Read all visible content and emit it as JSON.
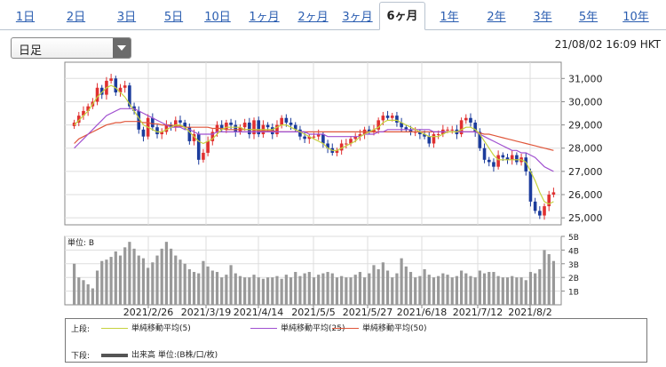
{
  "tabs": [
    "1日",
    "2日",
    "3日",
    "5日",
    "10日",
    "1ヶ月",
    "2ヶ月",
    "3ヶ月",
    "6ヶ月",
    "1年",
    "2年",
    "3年",
    "5年",
    "10年"
  ],
  "active_tab": "6ヶ月",
  "period_select": {
    "value": "日足"
  },
  "timestamp": "21/08/02 16:09 HKT",
  "legend": {
    "upper_label": "上段:",
    "lower_label": "下段:",
    "ma5": "単純移動平均(5)",
    "ma25": "単純移動平均(25)",
    "ma50": "単純移動平均(50)",
    "volume": "出来高 単位:(B株/口/枚)"
  },
  "colors": {
    "up": "#e03030",
    "down": "#1c3c9c",
    "ma5": "#c6d23e",
    "ma25": "#a050d0",
    "ma50": "#e0563a",
    "volume": "#999999"
  },
  "chart_data": {
    "type": "candlestick",
    "x_ticks": [
      "2021/2/26",
      "2021/3/19",
      "2021/4/14",
      "2021/5/5",
      "2021/5/27",
      "2021/6/18",
      "2021/7/12",
      "2021/8/2"
    ],
    "price": {
      "ylim": [
        24700,
        31700
      ],
      "y_ticks": [
        "25,000",
        "26,000",
        "27,000",
        "28,000",
        "29,000",
        "30,000",
        "31,000"
      ],
      "closes": [
        29100,
        29400,
        29600,
        29800,
        30000,
        30600,
        30300,
        30900,
        31000,
        30400,
        30600,
        30700,
        29800,
        29600,
        28800,
        28500,
        29300,
        28900,
        28600,
        28700,
        29000,
        28900,
        29200,
        29100,
        28900,
        28300,
        28600,
        27500,
        27800,
        28300,
        28700,
        29000,
        28800,
        29100,
        29000,
        28700,
        28900,
        29100,
        28600,
        29200,
        28600,
        29000,
        28900,
        28600,
        29000,
        29300,
        29100,
        29000,
        28800,
        28500,
        28400,
        28500,
        28500,
        28600,
        28200,
        28000,
        27800,
        27900,
        28200,
        28200,
        28400,
        28500,
        28600,
        28800,
        28700,
        28800,
        29200,
        29400,
        29300,
        29400,
        29100,
        28900,
        28800,
        28700,
        28700,
        28600,
        28500,
        28200,
        28600,
        28600,
        28800,
        28800,
        28800,
        28600,
        29200,
        29300,
        29100,
        28700,
        28000,
        27500,
        27400,
        27200,
        27700,
        27600,
        27500,
        27700,
        27400,
        27600,
        27000,
        25700,
        25300,
        25100,
        25500,
        26000,
        26100
      ],
      "ma5": [
        29000,
        29200,
        29400,
        29600,
        29900,
        30200,
        30400,
        30600,
        30700,
        30600,
        30400,
        30200,
        29900,
        29600,
        29300,
        29000,
        28900,
        28800,
        28700,
        28700,
        28800,
        28900,
        29000,
        29000,
        28900,
        28700,
        28500,
        28300,
        28200,
        28300,
        28400,
        28600,
        28800,
        28900,
        28900,
        28900,
        28900,
        28800,
        28800,
        28800,
        28800,
        28800,
        28800,
        28800,
        28900,
        29000,
        29000,
        28900,
        28800,
        28700,
        28600,
        28500,
        28400,
        28300,
        28200,
        28000,
        27900,
        27900,
        28000,
        28100,
        28200,
        28300,
        28500,
        28600,
        28700,
        28800,
        28900,
        29100,
        29200,
        29200,
        29200,
        29100,
        29000,
        28900,
        28800,
        28700,
        28600,
        28500,
        28500,
        28500,
        28600,
        28700,
        28700,
        28700,
        28800,
        28900,
        28900,
        28800,
        28600,
        28300,
        28000,
        27700,
        27500,
        27500,
        27500,
        27500,
        27500,
        27500,
        27400,
        27000,
        26600,
        26100,
        25700,
        25600,
        25700
      ],
      "ma25": [
        28000,
        28200,
        28400,
        28600,
        28800,
        29000,
        29200,
        29400,
        29500,
        29600,
        29700,
        29700,
        29700,
        29700,
        29600,
        29500,
        29400,
        29300,
        29200,
        29100,
        29000,
        28900,
        28900,
        28900,
        28800,
        28800,
        28700,
        28600,
        28600,
        28600,
        28600,
        28700,
        28700,
        28700,
        28700,
        28700,
        28700,
        28700,
        28700,
        28700,
        28700,
        28700,
        28700,
        28700,
        28700,
        28700,
        28700,
        28700,
        28700,
        28700,
        28700,
        28600,
        28600,
        28600,
        28600,
        28500,
        28500,
        28500,
        28500,
        28500,
        28500,
        28500,
        28500,
        28600,
        28600,
        28600,
        28700,
        28700,
        28800,
        28800,
        28800,
        28800,
        28800,
        28800,
        28800,
        28800,
        28800,
        28800,
        28700,
        28700,
        28700,
        28700,
        28700,
        28700,
        28700,
        28700,
        28700,
        28700,
        28600,
        28500,
        28400,
        28300,
        28200,
        28100,
        28000,
        27900,
        27900,
        27800,
        27800,
        27700,
        27600,
        27400,
        27200,
        27100,
        27000
      ],
      "ma50": [
        28200,
        28400,
        28500,
        28600,
        28700,
        28800,
        28900,
        29000,
        29050,
        29100,
        29100,
        29150,
        29150,
        29150,
        29150,
        29100,
        29100,
        29050,
        29050,
        29000,
        29000,
        29000,
        28950,
        28950,
        28900,
        28900,
        28900,
        28900,
        28900,
        28900,
        28850,
        28850,
        28850,
        28800,
        28800,
        28800,
        28800,
        28800,
        28800,
        28800,
        28750,
        28750,
        28750,
        28750,
        28700,
        28700,
        28700,
        28700,
        28700,
        28700,
        28700,
        28700,
        28700,
        28700,
        28700,
        28700,
        28700,
        28700,
        28700,
        28700,
        28700,
        28700,
        28700,
        28700,
        28700,
        28700,
        28700,
        28700,
        28700,
        28700,
        28700,
        28700,
        28700,
        28700,
        28700,
        28700,
        28700,
        28700,
        28700,
        28700,
        28700,
        28700,
        28700,
        28700,
        28700,
        28700,
        28700,
        28700,
        28650,
        28600,
        28600,
        28550,
        28500,
        28450,
        28400,
        28350,
        28300,
        28250,
        28200,
        28150,
        28100,
        28050,
        28000,
        27950,
        27900
      ]
    },
    "volume": {
      "unit": "B",
      "title": "単位: B",
      "ylim": [
        0,
        5
      ],
      "y_ticks": [
        "1B",
        "2B",
        "3B",
        "4B",
        "5B"
      ],
      "values": [
        3.0,
        2.0,
        1.8,
        1.5,
        1.2,
        2.5,
        3.2,
        3.3,
        3.5,
        3.9,
        3.6,
        4.2,
        4.6,
        4.1,
        3.6,
        3.4,
        2.7,
        3.1,
        3.6,
        4.1,
        4.6,
        4.1,
        3.6,
        3.3,
        3.0,
        2.6,
        2.4,
        2.3,
        3.2,
        2.8,
        2.5,
        2.4,
        2.0,
        2.2,
        2.9,
        2.3,
        2.1,
        2.0,
        2.0,
        2.2,
        2.0,
        1.9,
        2.0,
        2.0,
        2.1,
        1.9,
        2.2,
        2.0,
        2.4,
        2.1,
        2.3,
        2.4,
        2.0,
        2.2,
        2.3,
        2.4,
        2.3,
        2.0,
        2.1,
        2.0,
        2.0,
        2.2,
        2.4,
        2.0,
        2.3,
        2.9,
        2.6,
        3.1,
        2.5,
        2.0,
        2.3,
        3.4,
        2.8,
        2.4,
        2.0,
        2.1,
        2.6,
        2.2,
        2.0,
        2.1,
        2.3,
        2.2,
        2.0,
        2.1,
        2.5,
        2.3,
        2.1,
        2.0,
        2.5,
        2.3,
        2.4,
        2.4,
        2.1,
        2.0,
        2.0,
        2.1,
        2.0,
        2.0,
        1.8,
        2.4,
        2.3,
        2.6,
        4.0,
        3.7,
        3.2
      ]
    }
  }
}
